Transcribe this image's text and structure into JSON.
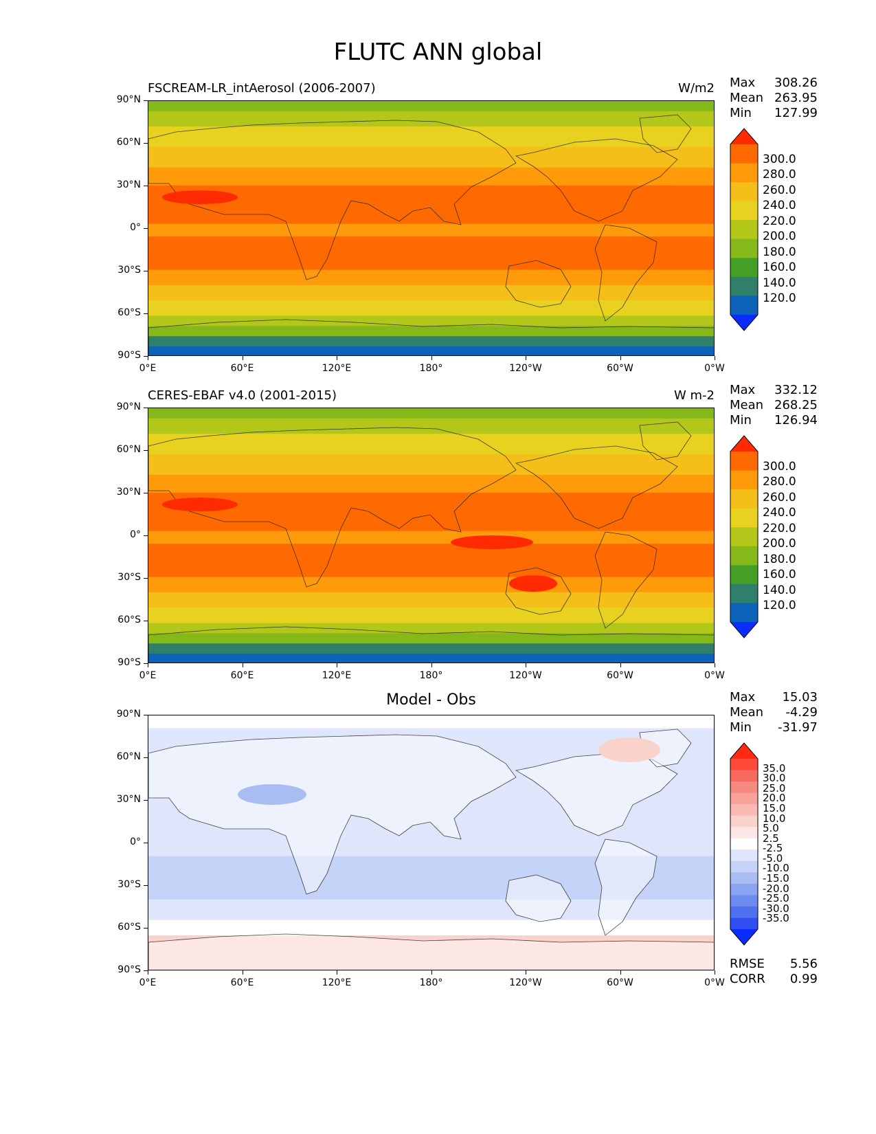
{
  "figure": {
    "title": "FLUTC ANN global"
  },
  "axes": {
    "yticks": [
      "90°N",
      "60°N",
      "30°N",
      "0°",
      "30°S",
      "60°S",
      "90°S"
    ],
    "xticks": [
      "0°E",
      "60°E",
      "120°E",
      "180°",
      "120°W",
      "60°W",
      "0°W"
    ]
  },
  "panels": [
    {
      "left_title": "FSCREAM-LR_intAerosol (2006-2007)",
      "center_title": "",
      "units": "W/m2",
      "stats": [
        {
          "label": "Max",
          "value": "308.26"
        },
        {
          "label": "Mean",
          "value": "263.95"
        },
        {
          "label": "Min",
          "value": "127.99"
        }
      ],
      "colorbar": {
        "levels": [
          "300.0",
          "280.0",
          "260.0",
          "240.0",
          "220.0",
          "200.0",
          "180.0",
          "160.0",
          "140.0",
          "120.0"
        ],
        "colors": [
          "#ff2a00",
          "#ff6a00",
          "#ff9a0a",
          "#f5bf1a",
          "#e8d21f",
          "#b3c61a",
          "#86b81a",
          "#44a026",
          "#2f7f6a",
          "#0b62b8",
          "#0a2cff"
        ]
      },
      "map_style": "model"
    },
    {
      "left_title": "CERES-EBAF v4.0 (2001-2015)",
      "center_title": "",
      "units": "W m-2",
      "stats": [
        {
          "label": "Max",
          "value": "332.12"
        },
        {
          "label": "Mean",
          "value": "268.25"
        },
        {
          "label": "Min",
          "value": "126.94"
        }
      ],
      "colorbar": {
        "levels": [
          "300.0",
          "280.0",
          "260.0",
          "240.0",
          "220.0",
          "200.0",
          "180.0",
          "160.0",
          "140.0",
          "120.0"
        ],
        "colors": [
          "#ff2a00",
          "#ff6a00",
          "#ff9a0a",
          "#f5bf1a",
          "#e8d21f",
          "#b3c61a",
          "#86b81a",
          "#44a026",
          "#2f7f6a",
          "#0b62b8",
          "#0a2cff"
        ]
      },
      "map_style": "obs"
    },
    {
      "left_title": "",
      "center_title": "Model - Obs",
      "units": "",
      "stats": [
        {
          "label": "Max",
          "value": "15.03"
        },
        {
          "label": "Mean",
          "value": "-4.29"
        },
        {
          "label": "Min",
          "value": "-31.97"
        }
      ],
      "extra_stats": [
        {
          "label": "RMSE",
          "value": "5.56"
        },
        {
          "label": "CORR",
          "value": "0.99"
        }
      ],
      "colorbar": {
        "levels": [
          "35.0",
          "30.0",
          "25.0",
          "20.0",
          "15.0",
          "10.0",
          "5.0",
          "2.5",
          "-2.5",
          "-5.0",
          "-10.0",
          "-15.0",
          "-20.0",
          "-25.0",
          "-30.0",
          "-35.0"
        ],
        "colors": [
          "#ff2a10",
          "#ff4a3a",
          "#f86a60",
          "#f58b80",
          "#f7a39a",
          "#f8bab2",
          "#fad2cc",
          "#fde7e4",
          "#ffffff",
          "#dfe6fb",
          "#c6d3f8",
          "#a9bdf4",
          "#8aa4f0",
          "#6c8cef",
          "#4f70f0",
          "#2f4ff3",
          "#0a2cff"
        ]
      },
      "map_style": "diff"
    }
  ]
}
